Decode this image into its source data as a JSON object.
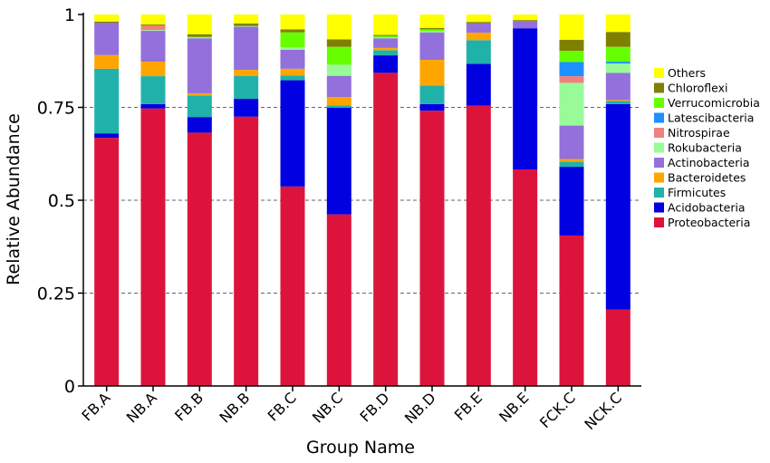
{
  "chart_data": {
    "type": "bar",
    "stacked": true,
    "xlabel": "Group Name",
    "ylabel": "Relative Abundance",
    "ylim": [
      0,
      1
    ],
    "yticks": [
      {
        "value": 0,
        "label": "0"
      },
      {
        "value": 0.25,
        "label": "0.25"
      },
      {
        "value": 0.5,
        "label": "0.5"
      },
      {
        "value": 0.75,
        "label": "0.75"
      },
      {
        "value": 1,
        "label": "1"
      }
    ],
    "grid": "horizontal dashed",
    "legend_position": "right",
    "categories": [
      "FB.A",
      "NB.A",
      "FB.B",
      "NB.B",
      "FB.C",
      "NB.C",
      "FB.D",
      "NB.D",
      "FB.E",
      "NB.E",
      "FCK.C",
      "NCK.C"
    ],
    "series": [
      {
        "name": "Proteobacteria",
        "color": "#DC143C",
        "values": [
          0.668,
          0.747,
          0.682,
          0.725,
          0.537,
          0.462,
          0.843,
          0.741,
          0.755,
          0.583,
          0.405,
          0.206
        ]
      },
      {
        "name": "Acidobacteria",
        "color": "#0000E0",
        "values": [
          0.012,
          0.012,
          0.042,
          0.048,
          0.286,
          0.287,
          0.047,
          0.018,
          0.112,
          0.38,
          0.185,
          0.553
        ]
      },
      {
        "name": "Firmicutes",
        "color": "#20B2AA",
        "values": [
          0.174,
          0.075,
          0.058,
          0.062,
          0.013,
          0.006,
          0.014,
          0.05,
          0.064,
          0.0,
          0.014,
          0.008
        ]
      },
      {
        "name": "Bacteroidetes",
        "color": "#FFA500",
        "values": [
          0.037,
          0.039,
          0.006,
          0.016,
          0.018,
          0.023,
          0.006,
          0.069,
          0.02,
          0.0,
          0.007,
          0.003
        ]
      },
      {
        "name": "Actinobacteria",
        "color": "#9370DB",
        "values": [
          0.087,
          0.083,
          0.148,
          0.116,
          0.051,
          0.057,
          0.026,
          0.074,
          0.025,
          0.019,
          0.09,
          0.073
        ]
      },
      {
        "name": "Rokubacteria",
        "color": "#98FB98",
        "values": [
          0.0,
          0.002,
          0.002,
          0.002,
          0.007,
          0.03,
          0.002,
          0.003,
          0.0,
          0.0,
          0.115,
          0.025
        ]
      },
      {
        "name": "Nitrospirae",
        "color": "#F08080",
        "values": [
          0.0,
          0.012,
          0.0,
          0.0,
          0.0,
          0.0,
          0.0,
          0.0,
          0.0,
          0.0,
          0.018,
          0.0
        ]
      },
      {
        "name": "Latescibacteria",
        "color": "#1E90FF",
        "values": [
          0.0,
          0.0,
          0.0,
          0.0,
          0.0,
          0.0,
          0.0,
          0.0,
          0.0,
          0.0,
          0.038,
          0.005
        ]
      },
      {
        "name": "Verrucomicrobia",
        "color": "#66FF00",
        "values": [
          0.0,
          0.0,
          0.002,
          0.0,
          0.04,
          0.048,
          0.004,
          0.005,
          0.0,
          0.0,
          0.03,
          0.04
        ]
      },
      {
        "name": "Chloroflexi",
        "color": "#808000",
        "values": [
          0.003,
          0.003,
          0.007,
          0.007,
          0.008,
          0.02,
          0.003,
          0.004,
          0.004,
          0.003,
          0.03,
          0.04
        ]
      },
      {
        "name": "Others",
        "color": "#FFFF00",
        "values": [
          0.019,
          0.027,
          0.053,
          0.024,
          0.04,
          0.067,
          0.055,
          0.036,
          0.02,
          0.015,
          0.068,
          0.047
        ]
      }
    ]
  }
}
